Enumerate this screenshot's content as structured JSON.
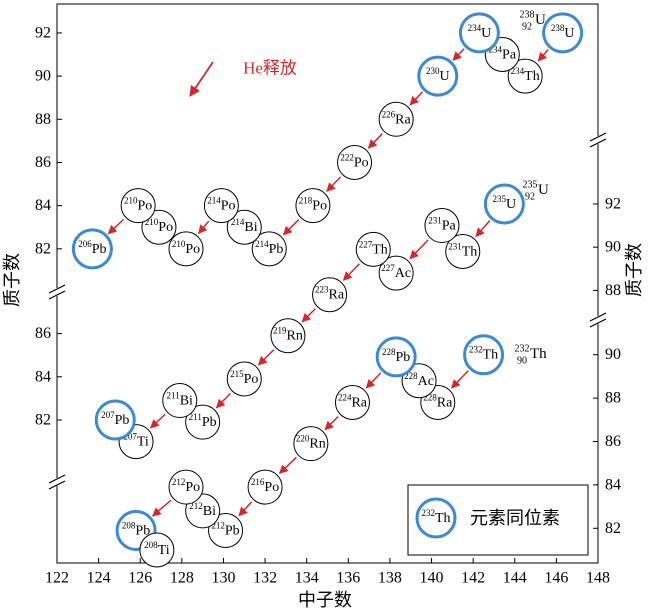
{
  "chart_data": {
    "type": "decay-chain",
    "xlabel": "中子数",
    "ylabel": "质子数",
    "xlim": [
      122,
      148
    ],
    "xticks": [
      122,
      124,
      126,
      128,
      130,
      132,
      134,
      136,
      138,
      140,
      142,
      144,
      146,
      148
    ],
    "annotation": "He释放",
    "arrow_color": "#d62728",
    "highlight_color": "#3a8ad6",
    "legend": {
      "mass": 232,
      "symbol": "Th",
      "label": "元素同位素"
    },
    "chains": [
      {
        "mass": 238,
        "z": 92,
        "symbol": "U",
        "ylim": [
          80.0,
          93.34
        ],
        "y_axes": [
          {
            "side": "left",
            "ticks": [
              82,
              84,
              86,
              88,
              90,
              92
            ]
          }
        ],
        "nodes": [
          {
            "mass": 238,
            "symbol": "U",
            "n": 146.3,
            "z": 92,
            "highlight": true
          },
          {
            "mass": 234,
            "symbol": "Th",
            "n": 144.5,
            "z": 90
          },
          {
            "mass": 234,
            "symbol": "Pa",
            "n": 143.4,
            "z": 91
          },
          {
            "mass": 234,
            "symbol": "U",
            "n": 142.3,
            "z": 92,
            "highlight": true
          },
          {
            "mass": 230,
            "symbol": "U",
            "n": 140.3,
            "z": 90,
            "highlight": true
          },
          {
            "mass": 226,
            "symbol": "Ra",
            "n": 138.3,
            "z": 88
          },
          {
            "mass": 222,
            "symbol": "Po",
            "n": 136.3,
            "z": 86
          },
          {
            "mass": 218,
            "symbol": "Po",
            "n": 134.3,
            "z": 84
          },
          {
            "mass": 214,
            "symbol": "Pb",
            "n": 132.2,
            "z": 82
          },
          {
            "mass": 214,
            "symbol": "Bi",
            "n": 131.0,
            "z": 83
          },
          {
            "mass": 214,
            "symbol": "Po",
            "n": 129.9,
            "z": 84
          },
          {
            "mass": 210,
            "symbol": "Po",
            "n": 128.2,
            "z": 82
          },
          {
            "mass": 210,
            "symbol": "Po",
            "n": 126.9,
            "z": 83
          },
          {
            "mass": 210,
            "symbol": "Po",
            "n": 125.9,
            "z": 84
          },
          {
            "mass": 206,
            "symbol": "Pb",
            "n": 123.7,
            "z": 82,
            "highlight": true
          }
        ]
      },
      {
        "mass": 235,
        "z": 92,
        "symbol": "U",
        "ylim": [
          79.13,
          94.96
        ],
        "y_axes": [
          {
            "side": "left",
            "ticks": [
              82,
              84,
              86
            ]
          },
          {
            "side": "right",
            "ticks": [
              88,
              90,
              92
            ]
          }
        ],
        "nodes": [
          {
            "mass": 235,
            "symbol": "U",
            "n": 143.5,
            "z": 92,
            "highlight": true
          },
          {
            "mass": 231,
            "symbol": "Th",
            "n": 141.5,
            "z": 89.8
          },
          {
            "mass": 231,
            "symbol": "Pa",
            "n": 140.5,
            "z": 91
          },
          {
            "mass": 227,
            "symbol": "Ac",
            "n": 138.3,
            "z": 88.8
          },
          {
            "mass": 227,
            "symbol": "Th",
            "n": 137.2,
            "z": 89.9
          },
          {
            "mass": 223,
            "symbol": "Ra",
            "n": 135.1,
            "z": 87.8
          },
          {
            "mass": 219,
            "symbol": "Rn",
            "n": 133.1,
            "z": 85.9
          },
          {
            "mass": 215,
            "symbol": "Po",
            "n": 131.0,
            "z": 83.9
          },
          {
            "mass": 211,
            "symbol": "Pb",
            "n": 129.0,
            "z": 81.9
          },
          {
            "mass": 211,
            "symbol": "Bi",
            "n": 127.9,
            "z": 82.9
          },
          {
            "mass": 207,
            "symbol": "Ti",
            "n": 125.8,
            "z": 81.0
          },
          {
            "mass": 207,
            "symbol": "Pb",
            "n": 124.8,
            "z": 82.0,
            "highlight": true
          }
        ]
      },
      {
        "mass": 232,
        "z": 90,
        "symbol": "Th",
        "ylim": [
          80.4,
          91.6
        ],
        "y_axes": [
          {
            "side": "right",
            "ticks": [
              82,
              84,
              86,
              88,
              90
            ]
          }
        ],
        "nodes": [
          {
            "mass": 232,
            "symbol": "Th",
            "n": 142.5,
            "z": 90,
            "highlight": true
          },
          {
            "mass": 228,
            "symbol": "Ra",
            "n": 140.3,
            "z": 87.8
          },
          {
            "mass": 228,
            "symbol": "Ac",
            "n": 139.4,
            "z": 88.8
          },
          {
            "mass": 228,
            "symbol": "Pb",
            "n": 138.3,
            "z": 89.9,
            "highlight": true
          },
          {
            "mass": 224,
            "symbol": "Ra",
            "n": 136.2,
            "z": 87.8
          },
          {
            "mass": 220,
            "symbol": "Rn",
            "n": 134.2,
            "z": 85.9
          },
          {
            "mass": 216,
            "symbol": "Po",
            "n": 132.0,
            "z": 83.9
          },
          {
            "mass": 212,
            "symbol": "Pb",
            "n": 130.1,
            "z": 81.9
          },
          {
            "mass": 212,
            "symbol": "Bi",
            "n": 129.0,
            "z": 82.8
          },
          {
            "mass": 212,
            "symbol": "Po",
            "n": 128.2,
            "z": 83.9
          },
          {
            "mass": 208,
            "symbol": "Pb",
            "n": 125.8,
            "z": 81.9,
            "highlight": true
          },
          {
            "mass": 208,
            "symbol": "Ti",
            "n": 126.8,
            "z": 81.0
          }
        ]
      }
    ]
  }
}
